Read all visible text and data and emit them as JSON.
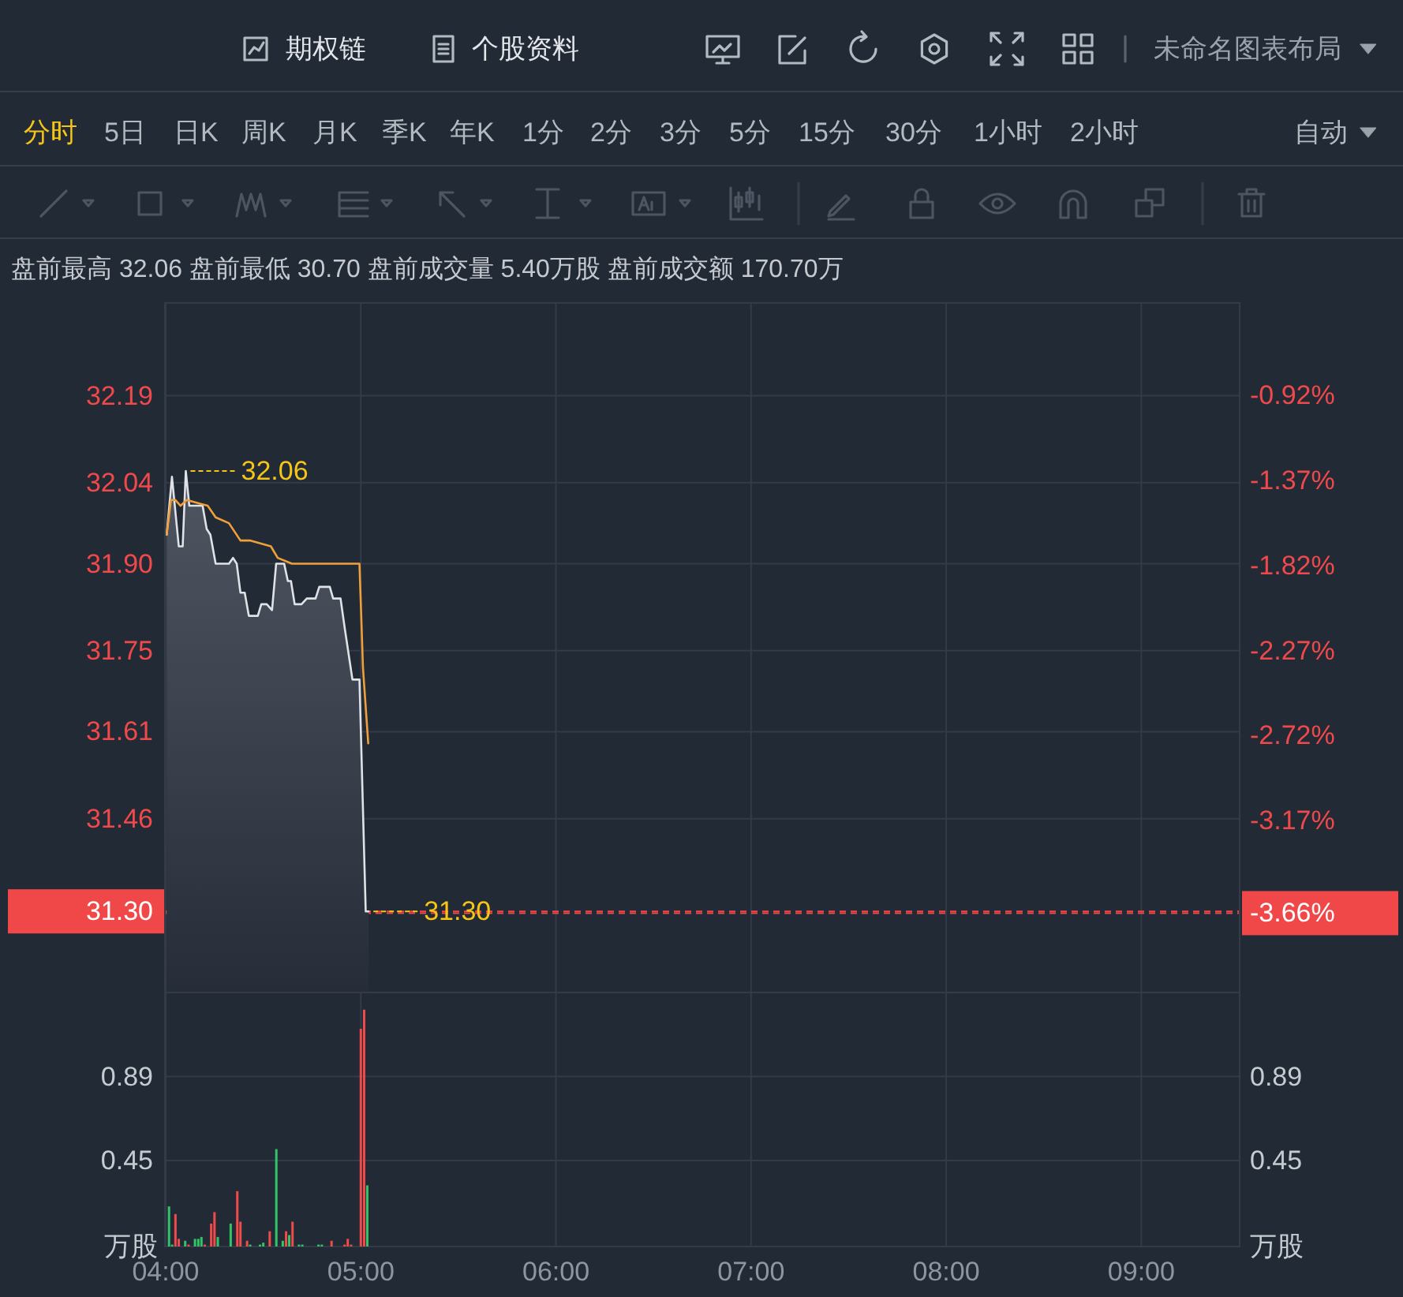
{
  "chart_data": [
    {
      "type": "other",
      "annotations": [
        "期权链",
        "个股资料",
        "未命名图表布局",
        "分时",
        "5日",
        "日K",
        "周K",
        "月K",
        "季K",
        "年K",
        "1分",
        "2分",
        "3分",
        "5分",
        "15分",
        "30分",
        "1小时",
        "2小时",
        "自动"
      ]
    },
    {
      "type": "line",
      "subtitle": "盘前最高 32.06 盘前最低 30.70 盘前成交量 5.40万股 盘前成交额 170.70万",
      "xlim": [
        4,
        9.5
      ],
      "xticks": [
        4,
        5,
        6,
        7,
        8,
        9
      ],
      "ylim": [
        31.16,
        32.35
      ],
      "yticks": [
        32.19,
        32.04,
        {
          "value": 31.9,
          "label": "31.90"
        },
        31.75,
        31.61,
        31.46
      ],
      "y2lim": [
        -4.08,
        -0.43
      ],
      "y2ticks": [
        {
          "value": -0.92,
          "label": "-0.92%"
        },
        {
          "value": -1.37,
          "label": "-1.37%"
        },
        {
          "value": -1.82,
          "label": "-1.82%"
        },
        {
          "value": -2.27,
          "label": "-2.27%"
        },
        {
          "value": -2.72,
          "label": "-2.72%"
        },
        {
          "value": -3.17,
          "label": "-3.17%"
        }
      ],
      "tick_labels": "y",
      "grid": true,
      "series": [
        {
          "type": "area",
          "color": "#dfe3e8",
          "x": [
            4.005,
            4.032,
            4.067,
            4.087,
            4.103,
            4.121,
            4.189,
            4.21,
            4.229,
            4.256,
            4.324,
            4.345,
            4.364,
            4.383,
            4.405,
            4.426,
            4.472,
            4.49,
            4.518,
            4.545,
            4.566,
            4.607,
            4.626,
            4.642,
            4.661,
            4.696,
            4.723,
            4.768,
            4.787,
            4.841,
            4.858,
            4.896,
            4.917,
            4.957,
            4.993,
            5.025,
            5.04
          ],
          "values": [
            31.95,
            32.05,
            31.93,
            31.93,
            32.06,
            32.0,
            32.0,
            31.96,
            31.95,
            31.9,
            31.9,
            31.91,
            31.9,
            31.85,
            31.85,
            31.81,
            31.81,
            31.83,
            31.83,
            31.82,
            31.9,
            31.9,
            31.87,
            31.87,
            31.83,
            31.83,
            31.84,
            31.84,
            31.86,
            31.86,
            31.84,
            31.84,
            31.79,
            31.7,
            31.7,
            31.3,
            31.3
          ]
        },
        {
          "type": "line",
          "color": "#f0a03a",
          "x": [
            4.005,
            4.027,
            4.049,
            4.076,
            4.108,
            4.215,
            4.256,
            4.324,
            4.383,
            4.431,
            4.539,
            4.574,
            4.647,
            4.728,
            4.917,
            4.993,
            5.011,
            5.038
          ],
          "values": [
            31.95,
            32.01,
            32.01,
            32.0,
            32.01,
            32.0,
            31.98,
            31.97,
            31.94,
            31.94,
            31.93,
            31.91,
            31.9,
            31.9,
            31.9,
            31.9,
            31.72,
            31.59
          ]
        }
      ],
      "ref_lines": [
        {
          "axis": "y",
          "value": 31.3,
          "label": "31.30",
          "color": "#f04848",
          "line_style": "dashed"
        },
        {
          "axis": "y2",
          "value": -3.66,
          "label": "-3.66%",
          "color": "#f04848",
          "line_style": "dashed"
        }
      ],
      "annotations": [
        {
          "text": "32.06",
          "x": 4.103,
          "y": 32.06
        },
        {
          "text": "31.30",
          "x": 5.04,
          "y": 31.3
        }
      ]
    },
    {
      "type": "bar",
      "xlim": [
        4,
        9.5
      ],
      "xticks": [
        {
          "value": 4,
          "label": "04:00"
        },
        {
          "value": 5,
          "label": "05:00"
        },
        {
          "value": 6,
          "label": "06:00"
        },
        {
          "value": 7,
          "label": "07:00"
        },
        {
          "value": 8,
          "label": "08:00"
        },
        {
          "value": 9,
          "label": "09:00"
        }
      ],
      "ylim": [
        0,
        1.33
      ],
      "yticks": [
        0.45,
        0.89
      ],
      "ylabel": "万股",
      "y2lim": [
        0,
        1.33
      ],
      "y2ticks": [
        0.45,
        0.89
      ],
      "y2label": "万股",
      "grid": true,
      "x": [
        4.017,
        4.033,
        4.05,
        4.067,
        4.1,
        4.117,
        4.15,
        4.167,
        4.183,
        4.2,
        4.233,
        4.25,
        4.267,
        4.333,
        4.367,
        4.383,
        4.417,
        4.433,
        4.483,
        4.5,
        4.533,
        4.567,
        4.6,
        4.617,
        4.633,
        4.65,
        4.683,
        4.7,
        4.783,
        4.8,
        4.85,
        4.917,
        4.933,
        4.95,
        5.0,
        5.017,
        5.033
      ],
      "values": [
        0.21,
        0.01,
        0.17,
        0.04,
        0.03,
        0.01,
        0.04,
        0.04,
        0.05,
        0.01,
        0.12,
        0.18,
        0.05,
        0.12,
        0.29,
        0.13,
        0.03,
        0.01,
        0.01,
        0.02,
        0.08,
        0.51,
        0.03,
        0.08,
        0.06,
        0.13,
        0.01,
        0.01,
        0.01,
        0.01,
        0.03,
        0.01,
        0.04,
        0.01,
        1.14,
        1.24,
        0.32
      ],
      "colors": [
        "#33c46a",
        "#33c46a",
        "#f04b4b",
        "#f04b4b",
        "#33c46a",
        "#f04b4b",
        "#33c46a",
        "#33c46a",
        "#33c46a",
        "#f04b4b",
        "#f04b4b",
        "#f04b4b",
        "#33c46a",
        "#33c46a",
        "#f04b4b",
        "#f04b4b",
        "#f04b4b",
        "#33c46a",
        "#33c46a",
        "#33c46a",
        "#f04b4b",
        "#33c46a",
        "#33c46a",
        "#f04b4b",
        "#33c46a",
        "#f04b4b",
        "#33c46a",
        "#33c46a",
        "#33c46a",
        "#33c46a",
        "#f04b4b",
        "#f04b4b",
        "#f04b4b",
        "#f04b4b",
        "#f04b4b",
        "#f04b4b",
        "#33c46a"
      ]
    }
  ]
}
